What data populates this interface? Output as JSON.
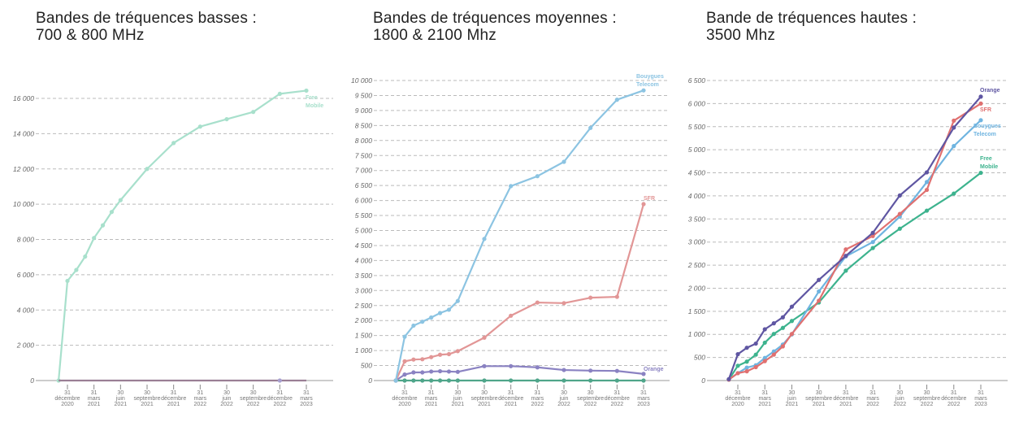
{
  "chart_data": [
    {
      "type": "line",
      "title": [
        "Bandes de tréquences basses :",
        "700 & 800 MHz"
      ],
      "x": [
        "2020-11-30",
        "2020-12-31",
        "2021-01-31",
        "2021-02-28",
        "2021-03-31",
        "2021-04-30",
        "2021-05-31",
        "2021-06-30",
        "2021-09-30",
        "2021-12-31",
        "2022-03-31",
        "2022-06-30",
        "2022-09-30",
        "2022-12-31",
        "2023-03-31"
      ],
      "x_tick_labels": [
        [
          "31",
          "décembre",
          "2020"
        ],
        [
          "31",
          "mars",
          "2021"
        ],
        [
          "30",
          "juin",
          "2021"
        ],
        [
          "30",
          "septembre",
          "2021"
        ],
        [
          "31",
          "décembre",
          "2021"
        ],
        [
          "31",
          "mars",
          "2022"
        ],
        [
          "30",
          "juin",
          "2022"
        ],
        [
          "30",
          "septembre",
          "2022"
        ],
        [
          "31",
          "décembre",
          "2022"
        ],
        [
          "31",
          "mars",
          "2023"
        ]
      ],
      "y_ticks": [
        0,
        2000,
        4000,
        6000,
        8000,
        10000,
        12000,
        14000,
        16000
      ],
      "y_tick_labels": [
        "0",
        "2 000",
        "4 000",
        "6 000",
        "8 000",
        "10 000",
        "12 000",
        "14 000",
        "16 000"
      ],
      "ylim": [
        0,
        16000
      ],
      "grid": "horizontal dashed",
      "series": [
        {
          "name": "Free Mobile",
          "label_lines": [
            "Free",
            "Mobile"
          ],
          "color": "#a8e0cc",
          "values": [
            0,
            5650,
            6270,
            7030,
            8080,
            8800,
            9560,
            10230,
            12000,
            13470,
            14400,
            14820,
            15230,
            16260,
            16440
          ]
        },
        {
          "color": "#9a7f95",
          "values": [
            0,
            0,
            0,
            0,
            0,
            0,
            0,
            0,
            0,
            0,
            0,
            0,
            0,
            0,
            0
          ]
        }
      ]
    },
    {
      "type": "line",
      "title": [
        "Bandes de tréquences moyennes :",
        "1800 & 2100 Mhz"
      ],
      "x": [
        "2020-11-30",
        "2020-12-31",
        "2021-01-31",
        "2021-02-28",
        "2021-03-31",
        "2021-04-30",
        "2021-05-31",
        "2021-06-30",
        "2021-09-30",
        "2021-12-31",
        "2022-03-31",
        "2022-06-30",
        "2022-09-30",
        "2022-12-31",
        "2023-03-31"
      ],
      "x_tick_labels": [
        [
          "31",
          "décembre",
          "2020"
        ],
        [
          "31",
          "mars",
          "2021"
        ],
        [
          "30",
          "juin",
          "2021"
        ],
        [
          "30",
          "septembre",
          "2021"
        ],
        [
          "31",
          "décembre",
          "2021"
        ],
        [
          "31",
          "mars",
          "2022"
        ],
        [
          "30",
          "juin",
          "2022"
        ],
        [
          "30",
          "septembre",
          "2022"
        ],
        [
          "31",
          "décembre",
          "2022"
        ],
        [
          "31",
          "mars",
          "2023"
        ]
      ],
      "y_ticks": [
        0,
        500,
        1000,
        1500,
        2000,
        2500,
        3000,
        3500,
        4000,
        4500,
        5000,
        5500,
        6000,
        6500,
        7000,
        7500,
        8000,
        8500,
        9000,
        9500,
        10000
      ],
      "y_tick_labels": [
        "0",
        "500",
        "1 000",
        "1 500",
        "2 000",
        "2 500",
        "3 000",
        "3 500",
        "4 000",
        "4 500",
        "5 000",
        "5 500",
        "6 000",
        "6 500",
        "7 000",
        "7 500",
        "8 000",
        "8 500",
        "9 000",
        "9 500",
        "10 000"
      ],
      "ylim": [
        0,
        10000
      ],
      "grid": "horizontal dashed",
      "series": [
        {
          "color": "#4fa58a",
          "values": [
            0,
            0,
            0,
            0,
            0,
            0,
            0,
            0,
            0,
            0,
            0,
            0,
            0,
            0,
            0
          ]
        },
        {
          "name": "Orange",
          "label_lines": [
            "Orange"
          ],
          "color": "#8a82c2",
          "values": [
            0,
            200,
            270,
            270,
            300,
            310,
            300,
            290,
            480,
            480,
            440,
            350,
            330,
            320,
            220
          ]
        },
        {
          "name": "SFR",
          "label_lines": [
            "SFR"
          ],
          "color": "#e29696",
          "values": [
            0,
            640,
            700,
            710,
            780,
            860,
            880,
            980,
            1430,
            2160,
            2600,
            2580,
            2760,
            2790,
            5880
          ]
        },
        {
          "name": "Bouygues Telecom",
          "label_lines": [
            "Bouygues",
            "Telecom"
          ],
          "color": "#8cc4e2",
          "values": [
            0,
            1460,
            1830,
            1960,
            2100,
            2250,
            2360,
            2650,
            4720,
            6480,
            6810,
            7290,
            8420,
            9360,
            9670
          ]
        }
      ]
    },
    {
      "type": "line",
      "title": [
        "Bande de tréquences hautes :",
        "3500 Mhz"
      ],
      "x": [
        "2020-11-30",
        "2020-12-31",
        "2021-01-31",
        "2021-02-28",
        "2021-03-31",
        "2021-04-30",
        "2021-05-31",
        "2021-06-30",
        "2021-09-30",
        "2021-12-31",
        "2022-03-31",
        "2022-06-30",
        "2022-09-30",
        "2022-12-31",
        "2023-03-31"
      ],
      "x_tick_labels": [
        [
          "31",
          "décembre",
          "2020"
        ],
        [
          "31",
          "mars",
          "2021"
        ],
        [
          "30",
          "juin",
          "2021"
        ],
        [
          "30",
          "septembre",
          "2021"
        ],
        [
          "31",
          "décembre",
          "2021"
        ],
        [
          "31",
          "mars",
          "2022"
        ],
        [
          "30",
          "juin",
          "2022"
        ],
        [
          "30",
          "septembre",
          "2022"
        ],
        [
          "31",
          "décembre",
          "2022"
        ],
        [
          "31",
          "mars",
          "2023"
        ]
      ],
      "y_ticks": [
        0,
        500,
        1000,
        1500,
        2000,
        2500,
        3000,
        3500,
        4000,
        4500,
        5000,
        5500,
        6000,
        6500
      ],
      "y_tick_labels": [
        "0",
        "500",
        "1 000",
        "1 500",
        "2 000",
        "2 500",
        "3 000",
        "3 500",
        "4 000",
        "4 500",
        "5 000",
        "5 500",
        "6 000",
        "6 500"
      ],
      "ylim": [
        0,
        6500
      ],
      "grid": "horizontal dashed",
      "series": [
        {
          "name": "Free Mobile",
          "label_lines": [
            "Free",
            "Mobile"
          ],
          "color": "#3db38e",
          "values": [
            20,
            320,
            410,
            560,
            820,
            1010,
            1140,
            1290,
            1690,
            2380,
            2870,
            3290,
            3680,
            4050,
            4500
          ]
        },
        {
          "name": "Bouygues Telecom",
          "label_lines": [
            "Bouygues",
            "Telecom"
          ],
          "color": "#6fb4e0",
          "values": [
            20,
            160,
            280,
            330,
            490,
            630,
            780,
            1000,
            1930,
            2690,
            3000,
            3550,
            4300,
            5080,
            5640
          ]
        },
        {
          "name": "SFR",
          "label_lines": [
            "SFR"
          ],
          "color": "#e07070",
          "values": [
            20,
            160,
            200,
            290,
            420,
            560,
            740,
            1010,
            1730,
            2840,
            3130,
            3610,
            4130,
            5630,
            6000
          ]
        },
        {
          "name": "Orange",
          "label_lines": [
            "Orange"
          ],
          "color": "#5f56a2",
          "values": [
            30,
            570,
            710,
            800,
            1110,
            1240,
            1370,
            1600,
            2180,
            2700,
            3200,
            4010,
            4510,
            5480,
            6150
          ]
        }
      ]
    }
  ]
}
